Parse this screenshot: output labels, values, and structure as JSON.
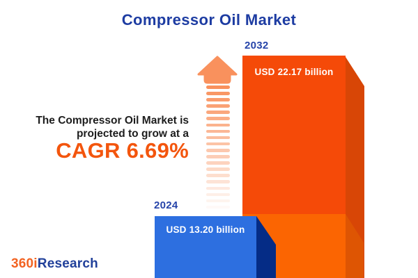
{
  "header": {
    "title": "Compressor Oil Market"
  },
  "growth_note": {
    "line1": "The Compressor Oil Market is",
    "line2": "projected to grow at a",
    "cagr_label": "CAGR 6.69%"
  },
  "bars": {
    "start": {
      "year": "2024",
      "value_label": "USD 13.20 billion"
    },
    "end": {
      "year": "2032",
      "value_label": "USD 22.17 billion"
    }
  },
  "logo": {
    "part1": "360i",
    "part2": "Research"
  },
  "colors": {
    "title_blue": "#1d3ca2",
    "accent_orange": "#f3550d",
    "bar_2032_front": "#f54a08",
    "bar_2032_side": "#d84606",
    "bar_base_front": "#fb6502",
    "bar_base_side": "#de5503",
    "bar_2024_front": "#2d6fe0",
    "bar_2024_side": "#052c86",
    "arrow": "#f9915d"
  },
  "chart_data": {
    "type": "bar",
    "title": "Compressor Oil Market",
    "categories": [
      "2024",
      "2032"
    ],
    "values": [
      13.2,
      22.17
    ],
    "value_labels": [
      "USD 13.20 billion",
      "USD 22.17 billion"
    ],
    "unit": "USD billion",
    "cagr_percent": 6.69,
    "annotations": [
      "The Compressor Oil Market is projected to grow at a",
      "CAGR 6.69%"
    ],
    "legend": false,
    "grid": false,
    "orientation": "vertical",
    "style": "3d-cuboid-bars"
  }
}
